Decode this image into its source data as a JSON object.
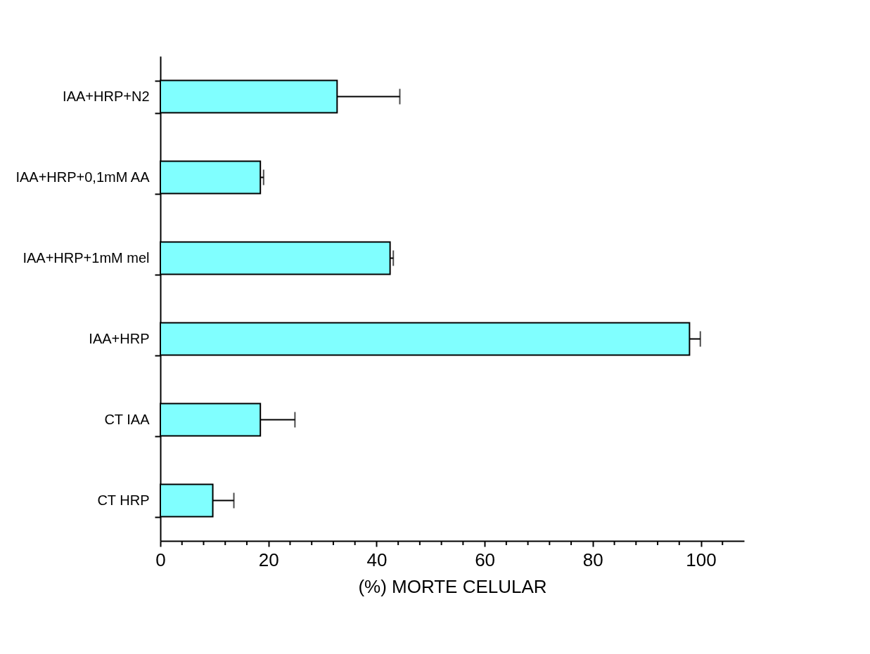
{
  "chart_data": {
    "type": "bar",
    "orientation": "horizontal",
    "xlabel": "(%) MORTE CELULAR",
    "categories": [
      "IAA+HRP+N2",
      "IAA+HRP+0,1mM AA",
      "IAA+HRP+1mM mel",
      "IAA+HRP",
      "CT IAA",
      "CT HRP"
    ],
    "values": [
      32.7,
      18.5,
      42.5,
      97.9,
      18.5,
      9.7
    ],
    "errors": [
      [
        32.7,
        44.3
      ],
      [
        18.5,
        19.1
      ],
      [
        42.5,
        43.1
      ],
      [
        97.9,
        99.9
      ],
      [
        18.5,
        24.9
      ],
      [
        9.7,
        13.6
      ]
    ],
    "color": "#80ffff",
    "xlim": [
      0,
      108
    ],
    "xticks": [
      0,
      {
        "value": 4,
        "label": null
      },
      {
        "value": 8,
        "label": null
      },
      {
        "value": 12,
        "label": null
      },
      {
        "value": 16,
        "label": null
      },
      20,
      {
        "value": 24,
        "label": null
      },
      {
        "value": 28,
        "label": null
      },
      {
        "value": 32,
        "label": null
      },
      {
        "value": 36,
        "label": null
      },
      40,
      {
        "value": 44,
        "label": null
      },
      {
        "value": 48,
        "label": null
      },
      {
        "value": 52,
        "label": null
      },
      {
        "value": 56,
        "label": null
      },
      60,
      {
        "value": 64,
        "label": null
      },
      {
        "value": 68,
        "label": null
      },
      {
        "value": 72,
        "label": null
      },
      {
        "value": 76,
        "label": null
      },
      80,
      {
        "value": 84,
        "label": null
      },
      {
        "value": 88,
        "label": null
      },
      {
        "value": 92,
        "label": null
      },
      {
        "value": 96,
        "label": null
      },
      100,
      {
        "value": 104,
        "label": null
      }
    ],
    "grid": false
  }
}
